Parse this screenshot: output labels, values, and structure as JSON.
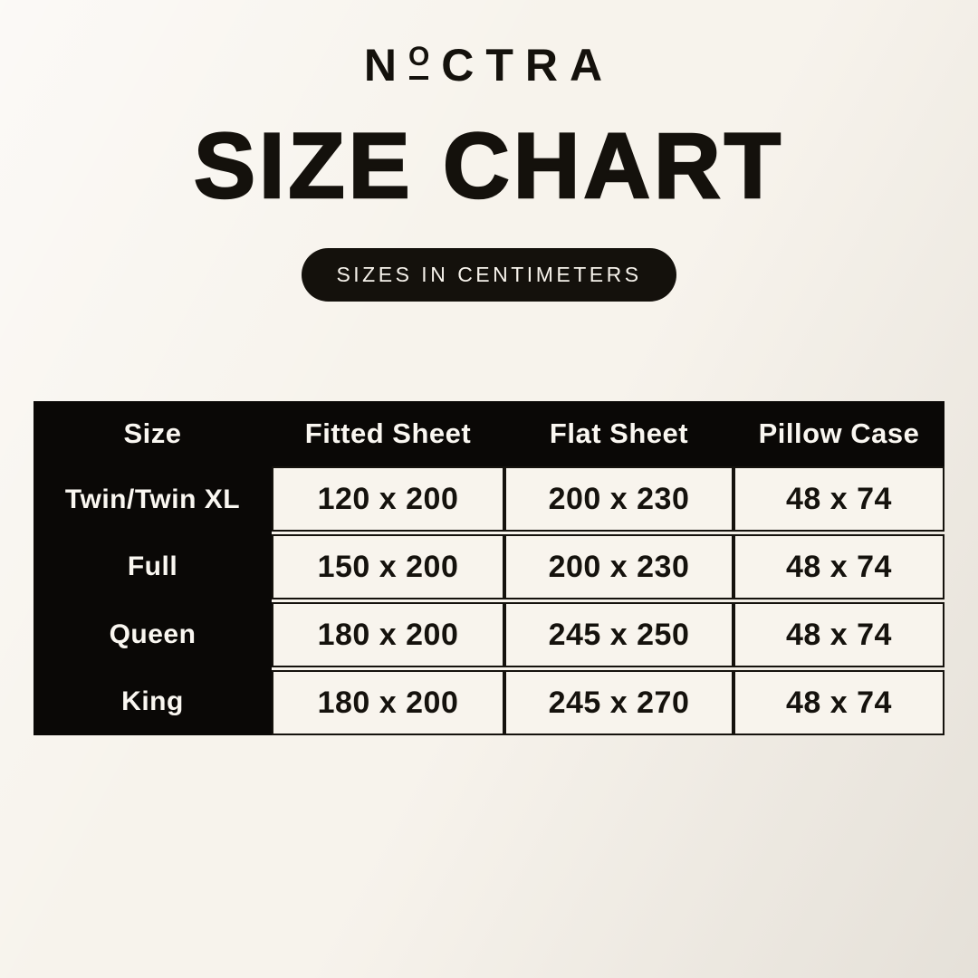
{
  "logo": {
    "part1": "N",
    "part2": "O",
    "part3": "CTRA"
  },
  "title": "SIZE CHART",
  "badge": "SIZES IN CENTIMETERS",
  "table": {
    "headers": [
      "Size",
      "Fitted Sheet",
      "Flat Sheet",
      "Pillow Case"
    ],
    "rows": [
      {
        "size": "Twin/Twin XL",
        "fitted": "120 x 200",
        "flat": "200 x 230",
        "pillow": "48 x 74"
      },
      {
        "size": "Full",
        "fitted": "150 x 200",
        "flat": "200 x 230",
        "pillow": "48 x 74"
      },
      {
        "size": "Queen",
        "fitted": "180 x 200",
        "flat": "245 x 250",
        "pillow": "48 x 74"
      },
      {
        "size": "King",
        "fitted": "180 x 200",
        "flat": "245 x 270",
        "pillow": "48 x 74"
      }
    ]
  },
  "chart_data": {
    "type": "table",
    "title": "SIZE CHART",
    "unit_note": "SIZES IN CENTIMETERS",
    "columns": [
      "Size",
      "Fitted Sheet",
      "Flat Sheet",
      "Pillow Case"
    ],
    "rows": [
      [
        "Twin/Twin XL",
        "120 x 200",
        "200 x 230",
        "48 x 74"
      ],
      [
        "Full",
        "150 x 200",
        "200 x 230",
        "48 x 74"
      ],
      [
        "Queen",
        "180 x 200",
        "245 x 250",
        "48 x 74"
      ],
      [
        "King",
        "180 x 200",
        "245 x 270",
        "48 x 74"
      ]
    ]
  },
  "colors": {
    "background": "#f7f3ec",
    "ink": "#14110c",
    "cell_background": "#f8f4ed",
    "text_on_dark": "#faf7f1"
  }
}
